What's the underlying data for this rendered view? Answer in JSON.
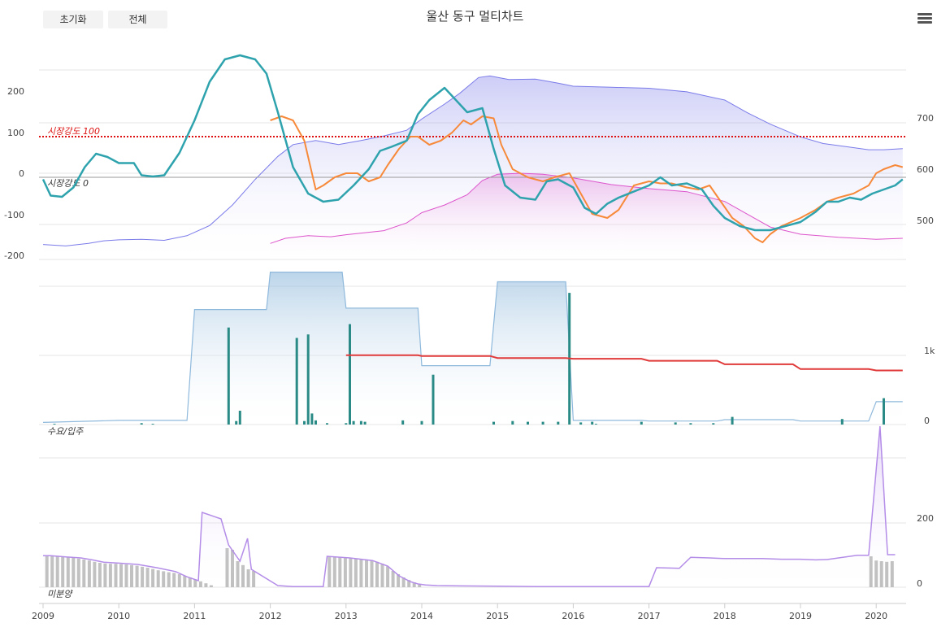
{
  "toolbar": {
    "reset_label": "초기화",
    "all_label": "전체"
  },
  "title": "울산 동구 멀티차트",
  "menu_icon": "hamburger-menu-icon",
  "colors": {
    "primary_area_line": "#7b7bea",
    "secondary_area_line": "#dd55cc",
    "teal": "#2fa3ad",
    "orange": "#f78a3a",
    "ref100": "#dd1111",
    "bar": "#2a8b86",
    "supply_line": "#8fb9dc",
    "red_line": "#e03a3a",
    "unsold_line": "#b48de8",
    "unsold_bar": "#bdbdbd"
  },
  "chart_data": [
    {
      "type": "line",
      "panel": "market-index",
      "annotations": [
        "시장강도 100",
        "시장강도 0"
      ],
      "y_left_ticks": [
        "200",
        "100",
        "0",
        "-100",
        "-200"
      ],
      "y_right_ticks": [
        "700",
        "600",
        "500"
      ],
      "x_ticks": [
        "2009",
        "2010",
        "2011",
        "2012",
        "2013",
        "2014",
        "2015",
        "2016",
        "2017",
        "2018",
        "2019",
        "2020"
      ],
      "reference_lines": [
        100,
        0
      ],
      "series": [
        {
          "axis": "right",
          "style": "area",
          "x": [
            2009.0,
            2009.3,
            2009.6,
            2009.8,
            2010.0,
            2010.3,
            2010.6,
            2010.9,
            2011.2,
            2011.5,
            2011.8,
            2012.1,
            2012.3,
            2012.6,
            2012.9,
            2013.2,
            2013.5,
            2013.8,
            2014.0,
            2014.3,
            2014.5,
            2014.75,
            2014.9,
            2015.15,
            2015.5,
            2015.8,
            2016.0,
            2016.5,
            2017.0,
            2017.5,
            2018.0,
            2018.3,
            2018.6,
            2019.0,
            2019.3,
            2019.6,
            2019.9,
            2020.1,
            2020.35
          ],
          "values": [
            453,
            450,
            455,
            460,
            462,
            463,
            461,
            470,
            490,
            530,
            580,
            625,
            648,
            656,
            648,
            656,
            665,
            676,
            698,
            727,
            748,
            779,
            782,
            775,
            776,
            768,
            762,
            760,
            758,
            751,
            735,
            710,
            688,
            663,
            650,
            644,
            638,
            638,
            640
          ]
        },
        {
          "axis": "right",
          "style": "area",
          "x": [
            2012.0,
            2012.2,
            2012.5,
            2012.8,
            2013.0,
            2013.5,
            2013.8,
            2014.0,
            2014.3,
            2014.6,
            2014.8,
            2015.0,
            2015.3,
            2015.6,
            2016.0,
            2016.5,
            2017.0,
            2017.5,
            2018.0,
            2018.3,
            2018.6,
            2019.0,
            2019.5,
            2020.0,
            2020.35
          ],
          "values": [
            455,
            465,
            470,
            468,
            472,
            480,
            495,
            515,
            530,
            550,
            578,
            590,
            592,
            590,
            583,
            570,
            562,
            556,
            537,
            512,
            487,
            473,
            467,
            463,
            465
          ]
        },
        {
          "axis": "left",
          "x": [
            2009.0,
            2009.1,
            2009.25,
            2009.4,
            2009.55,
            2009.7,
            2009.85,
            2010.0,
            2010.2,
            2010.3,
            2010.45,
            2010.6,
            2010.8,
            2011.0,
            2011.2,
            2011.4,
            2011.6,
            2011.8,
            2011.95,
            2012.1,
            2012.3,
            2012.5,
            2012.7,
            2012.9,
            2013.1,
            2013.3,
            2013.45,
            2013.6,
            2013.8,
            2013.95,
            2014.1,
            2014.3,
            2014.5,
            2014.6,
            2014.8,
            2014.95,
            2015.1,
            2015.3,
            2015.5,
            2015.65,
            2015.8,
            2016.0,
            2016.15,
            2016.3,
            2016.45,
            2016.6,
            2016.8,
            2017.0,
            2017.15,
            2017.3,
            2017.5,
            2017.7,
            2017.85,
            2018.0,
            2018.2,
            2018.4,
            2018.6,
            2018.8,
            2019.0,
            2019.2,
            2019.35,
            2019.5,
            2019.65,
            2019.8,
            2019.95,
            2020.1,
            2020.25,
            2020.35
          ],
          "values": [
            -5,
            -45,
            -48,
            -25,
            25,
            58,
            50,
            35,
            35,
            5,
            2,
            5,
            60,
            140,
            235,
            290,
            300,
            290,
            255,
            160,
            25,
            -40,
            -60,
            -55,
            -20,
            20,
            65,
            75,
            90,
            155,
            190,
            220,
            180,
            160,
            170,
            70,
            -20,
            -50,
            -55,
            -10,
            -5,
            -25,
            -75,
            -90,
            -65,
            -50,
            -35,
            -20,
            0,
            -20,
            -15,
            -30,
            -70,
            -100,
            -120,
            -130,
            -130,
            -120,
            -110,
            -85,
            -60,
            -60,
            -50,
            -55,
            -40,
            -30,
            -20,
            -5
          ]
        },
        {
          "axis": "left",
          "x": [
            2012.0,
            2012.15,
            2012.3,
            2012.45,
            2012.6,
            2012.7,
            2012.85,
            2013.0,
            2013.15,
            2013.3,
            2013.45,
            2013.55,
            2013.7,
            2013.85,
            2013.95,
            2014.1,
            2014.25,
            2014.4,
            2014.55,
            2014.65,
            2014.8,
            2014.95,
            2015.05,
            2015.2,
            2015.4,
            2015.6,
            2015.75,
            2015.95,
            2016.1,
            2016.25,
            2016.45,
            2016.6,
            2016.8,
            2017.0,
            2017.15,
            2017.3,
            2017.5,
            2017.65,
            2017.8,
            2017.95,
            2018.1,
            2018.25,
            2018.4,
            2018.5,
            2018.6,
            2018.75,
            2019.0,
            2019.2,
            2019.35,
            2019.5,
            2019.7,
            2019.9,
            2020.0,
            2020.1,
            2020.25,
            2020.35
          ],
          "values": [
            140,
            150,
            140,
            90,
            -30,
            -20,
            0,
            10,
            10,
            -10,
            0,
            30,
            70,
            100,
            100,
            80,
            90,
            110,
            140,
            130,
            150,
            145,
            80,
            20,
            0,
            -10,
            0,
            10,
            -40,
            -90,
            -100,
            -80,
            -20,
            -10,
            -15,
            -15,
            -25,
            -30,
            -20,
            -60,
            -100,
            -120,
            -150,
            -160,
            -140,
            -120,
            -100,
            -80,
            -60,
            -50,
            -40,
            -20,
            10,
            20,
            30,
            25
          ]
        }
      ]
    },
    {
      "type": "bar",
      "panel": "supply-occupancy",
      "annotations": [
        "수요/입주"
      ],
      "y_right_ticks": [
        "1k",
        "0"
      ],
      "bars": {
        "x": [
          2009.15,
          2010.3,
          2010.45,
          2011.45,
          2011.55,
          2011.6,
          2012.35,
          2012.45,
          2012.5,
          2012.55,
          2012.6,
          2012.75,
          2013.0,
          2013.05,
          2013.1,
          2013.2,
          2013.25,
          2013.75,
          2014.0,
          2014.15,
          2014.95,
          2015.2,
          2015.4,
          2015.6,
          2015.8,
          2015.95,
          2016.1,
          2016.25,
          2016.3,
          2016.9,
          2017.35,
          2017.55,
          2017.85,
          2018.1,
          2019.55,
          2020.1
        ],
        "values": [
          10,
          20,
          10,
          1400,
          50,
          200,
          1250,
          50,
          1300,
          160,
          60,
          20,
          20,
          1450,
          50,
          50,
          40,
          60,
          50,
          720,
          40,
          50,
          40,
          40,
          40,
          1900,
          30,
          40,
          10,
          40,
          30,
          20,
          20,
          110,
          80,
          380
        ]
      },
      "supply_line": {
        "x": [
          2009.0,
          2010.0,
          2010.9,
          2011.0,
          2011.95,
          2012.0,
          2012.95,
          2013.0,
          2013.95,
          2014.0,
          2014.9,
          2015.0,
          2015.9,
          2016.0,
          2016.9,
          2017.0,
          2017.9,
          2018.0,
          2018.9,
          2019.0,
          2019.9,
          2020.0,
          2020.35
        ],
        "values": [
          30,
          60,
          60,
          1660,
          1660,
          2200,
          2200,
          1680,
          1680,
          850,
          850,
          2060,
          2060,
          60,
          60,
          50,
          50,
          70,
          70,
          50,
          50,
          330,
          330
        ]
      },
      "red_line": {
        "x": [
          2013.0,
          2013.95,
          2014.0,
          2014.9,
          2015.0,
          2015.9,
          2016.0,
          2016.9,
          2017.0,
          2017.9,
          2018.0,
          2018.9,
          2019.0,
          2019.9,
          2020.0,
          2020.35
        ],
        "values": [
          1000,
          1000,
          990,
          990,
          960,
          960,
          950,
          950,
          920,
          920,
          870,
          870,
          800,
          800,
          780,
          780
        ]
      }
    },
    {
      "type": "area",
      "panel": "unsold",
      "annotations": [
        "미분양"
      ],
      "y_right_ticks": [
        "200",
        "0"
      ],
      "x_ticks": [
        "2009",
        "2010",
        "2011",
        "2012",
        "2013",
        "2014",
        "2015",
        "2016",
        "2017",
        "2018",
        "2019",
        "2020"
      ],
      "series": [
        {
          "style": "area",
          "x": [
            2009.0,
            2009.1,
            2009.3,
            2009.5,
            2009.65,
            2009.8,
            2010.0,
            2010.25,
            2010.5,
            2010.75,
            2010.9,
            2011.05,
            2011.1,
            2011.25,
            2011.35,
            2011.45,
            2011.6,
            2011.7,
            2011.75,
            2012.1,
            2012.3,
            2012.7,
            2012.75,
            2013.05,
            2013.35,
            2013.55,
            2013.7,
            2013.85,
            2013.95,
            2014.05,
            2014.2,
            2014.5,
            2015.0,
            2015.5,
            2016.0,
            2016.5,
            2016.9,
            2017.0,
            2017.1,
            2017.4,
            2017.55,
            2017.8,
            2018.0,
            2018.5,
            2018.75,
            2019.0,
            2019.2,
            2019.35,
            2019.75,
            2019.8,
            2019.9,
            2020.05,
            2020.15,
            2020.25
          ],
          "values": [
            97,
            97,
            93,
            90,
            84,
            77,
            74,
            70,
            60,
            48,
            32,
            20,
            230,
            218,
            210,
            130,
            80,
            150,
            55,
            5,
            2,
            2,
            95,
            90,
            82,
            65,
            35,
            17,
            10,
            7,
            5,
            4,
            3,
            2,
            2,
            2,
            2,
            2,
            60,
            58,
            92,
            90,
            88,
            88,
            86,
            86,
            84,
            85,
            98,
            98,
            98,
            495,
            100,
            100
          ]
        },
        {
          "style": "bar",
          "x": [
            2009.05,
            2009.12,
            2009.19,
            2009.26,
            2009.33,
            2009.4,
            2009.47,
            2009.54,
            2009.61,
            2009.68,
            2009.75,
            2009.82,
            2009.89,
            2009.96,
            2010.03,
            2010.1,
            2010.17,
            2010.24,
            2010.31,
            2010.38,
            2010.45,
            2010.52,
            2010.59,
            2010.66,
            2010.73,
            2010.8,
            2010.87,
            2010.94,
            2011.01,
            2011.08,
            2011.15,
            2011.22,
            2011.43,
            2011.5,
            2011.57,
            2011.64,
            2011.71,
            2011.78,
            2012.78,
            2012.85,
            2012.92,
            2012.99,
            2013.06,
            2013.13,
            2013.2,
            2013.27,
            2013.34,
            2013.41,
            2013.48,
            2013.55,
            2013.62,
            2013.69,
            2013.76,
            2013.83,
            2013.9,
            2013.97,
            2019.93,
            2020.0,
            2020.07,
            2020.14,
            2020.21
          ],
          "values": [
            96,
            95,
            94,
            93,
            92,
            90,
            88,
            85,
            82,
            78,
            75,
            73,
            72,
            72,
            71,
            70,
            68,
            66,
            63,
            60,
            56,
            52,
            49,
            46,
            44,
            40,
            35,
            30,
            24,
            18,
            12,
            6,
            120,
            115,
            80,
            68,
            55,
            50,
            95,
            94,
            93,
            92,
            90,
            87,
            85,
            83,
            82,
            78,
            72,
            64,
            50,
            40,
            30,
            22,
            15,
            8,
            95,
            82,
            80,
            78,
            80
          ]
        }
      ]
    }
  ]
}
